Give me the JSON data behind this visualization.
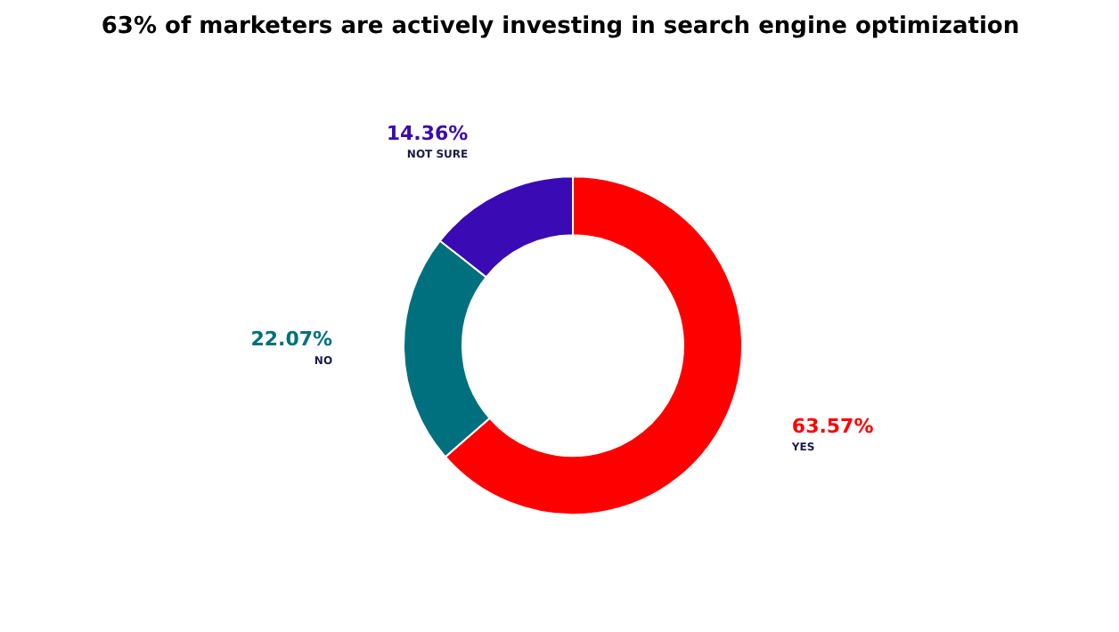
{
  "chart_data": {
    "type": "donut",
    "title": "63% of marketers are actively investing in search engine optimization",
    "categories": [
      "YES",
      "NO",
      "NOT SURE"
    ],
    "values": [
      63.57,
      22.07,
      14.36
    ],
    "colors": [
      "#ff0000",
      "#00707f",
      "#3a0ab4"
    ],
    "value_labels": [
      "63.57%",
      "22.07%",
      "14.36%"
    ],
    "legend": false
  }
}
